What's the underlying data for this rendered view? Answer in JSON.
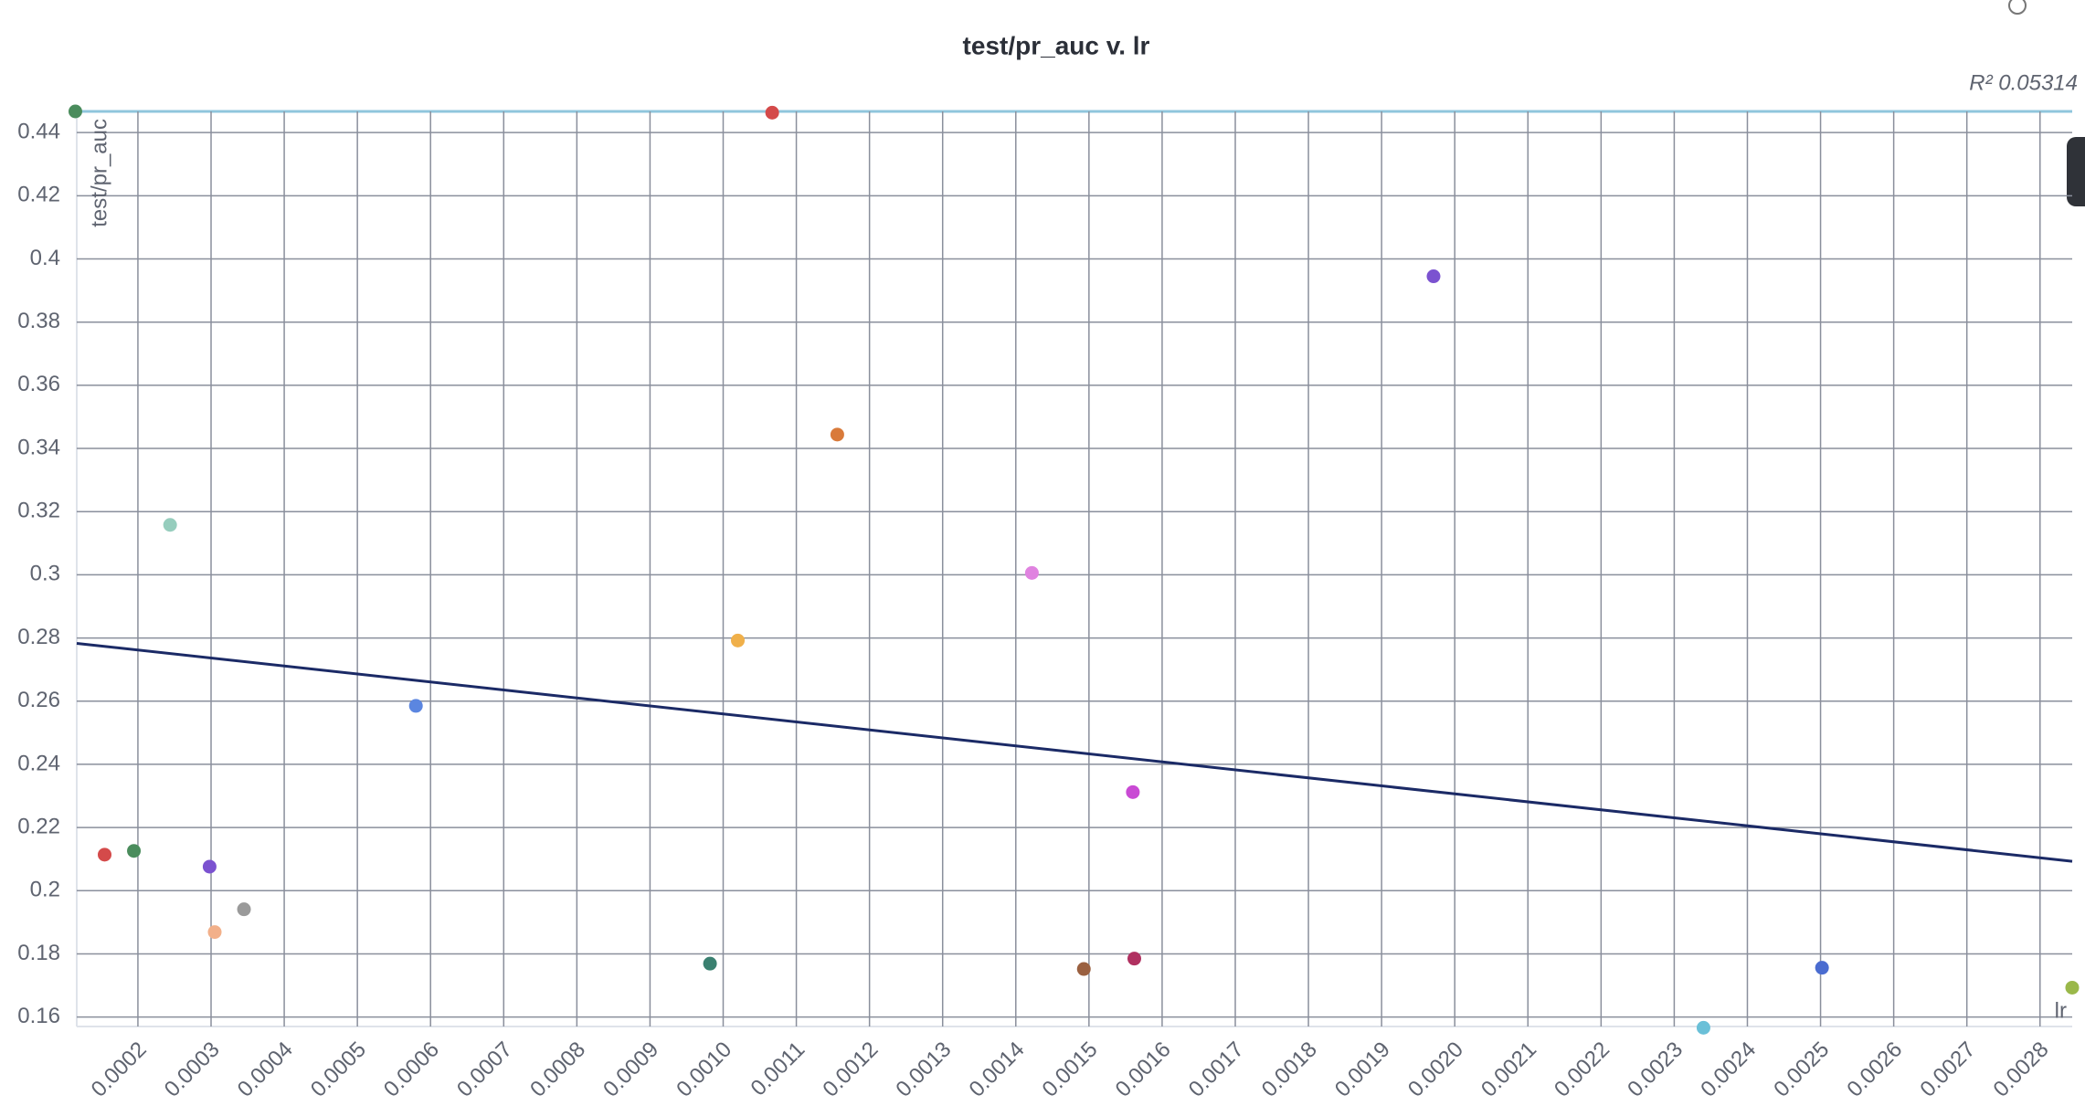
{
  "chart_data": {
    "type": "scatter",
    "title": "test/pr_auc v. lr",
    "x_label": "lr",
    "y_label": "test/pr_auc",
    "annotation": "R² 0.05314",
    "x": [
      0.0001145,
      0.001067,
      0.001971,
      0.001156,
      0.000244,
      0.001422,
      0.00102,
      0.00058,
      0.00156,
      0.0001545,
      0.0001945,
      0.000298,
      0.000345,
      0.000305,
      0.000982,
      0.001493,
      0.001562,
      0.00234,
      0.002502,
      0.002844
    ],
    "values": [
      0.4467,
      0.4463,
      0.3945,
      0.3444,
      0.3158,
      0.3006,
      0.2792,
      0.2585,
      0.2312,
      0.2114,
      0.2126,
      0.2076,
      0.1941,
      0.1869,
      0.1769,
      0.1752,
      0.1785,
      0.1566,
      0.1756,
      0.1693
    ],
    "colors": [
      "#4a8c5c",
      "#d44a4a",
      "#7b52d0",
      "#d97a3a",
      "#96cdbd",
      "#e083e0",
      "#f0b04a",
      "#5b86e0",
      "#c94ad4",
      "#d44a4a",
      "#4a8c5c",
      "#7b52d0",
      "#9a9a9a",
      "#f2b08a",
      "#3a8070",
      "#9a6040",
      "#b03060",
      "#6ac0d8",
      "#4a6cd0",
      "#9ab84a"
    ],
    "trend": {
      "x": [
        0.0001164,
        0.002844
      ],
      "values": [
        0.2783,
        0.2093
      ],
      "color": "#1b2a66"
    },
    "xlim": [
      0.0001164,
      0.002844
    ],
    "ylim": [
      0.157,
      0.4467
    ],
    "xticks": [
      {
        "value": 0.0002,
        "label": "0.0002"
      },
      {
        "value": 0.0003,
        "label": "0.0003"
      },
      {
        "value": 0.0004,
        "label": "0.0004"
      },
      {
        "value": 0.0005,
        "label": "0.0005"
      },
      {
        "value": 0.0006,
        "label": "0.0006"
      },
      {
        "value": 0.0007,
        "label": "0.0007"
      },
      {
        "value": 0.0008,
        "label": "0.0008"
      },
      {
        "value": 0.0009,
        "label": "0.0009"
      },
      {
        "value": 0.001,
        "label": "0.0010"
      },
      {
        "value": 0.0011,
        "label": "0.0011"
      },
      {
        "value": 0.0012,
        "label": "0.0012"
      },
      {
        "value": 0.0013,
        "label": "0.0013"
      },
      {
        "value": 0.0014,
        "label": "0.0014"
      },
      {
        "value": 0.0015,
        "label": "0.0015"
      },
      {
        "value": 0.0016,
        "label": "0.0016"
      },
      {
        "value": 0.0017,
        "label": "0.0017"
      },
      {
        "value": 0.0018,
        "label": "0.0018"
      },
      {
        "value": 0.0019,
        "label": "0.0019"
      },
      {
        "value": 0.002,
        "label": "0.0020"
      },
      {
        "value": 0.0021,
        "label": "0.0021"
      },
      {
        "value": 0.0022,
        "label": "0.0022"
      },
      {
        "value": 0.0023,
        "label": "0.0023"
      },
      {
        "value": 0.0024,
        "label": "0.0024"
      },
      {
        "value": 0.0025,
        "label": "0.0025"
      },
      {
        "value": 0.0026,
        "label": "0.0026"
      },
      {
        "value": 0.0027,
        "label": "0.0027"
      },
      {
        "value": 0.0028,
        "label": "0.0028"
      }
    ],
    "yticks": [
      0.16,
      0.18,
      0.2,
      0.22,
      0.24,
      0.26,
      0.28,
      0.3,
      0.32,
      0.34,
      0.36,
      0.38,
      0.4,
      0.42,
      0.44
    ],
    "grid": true
  }
}
